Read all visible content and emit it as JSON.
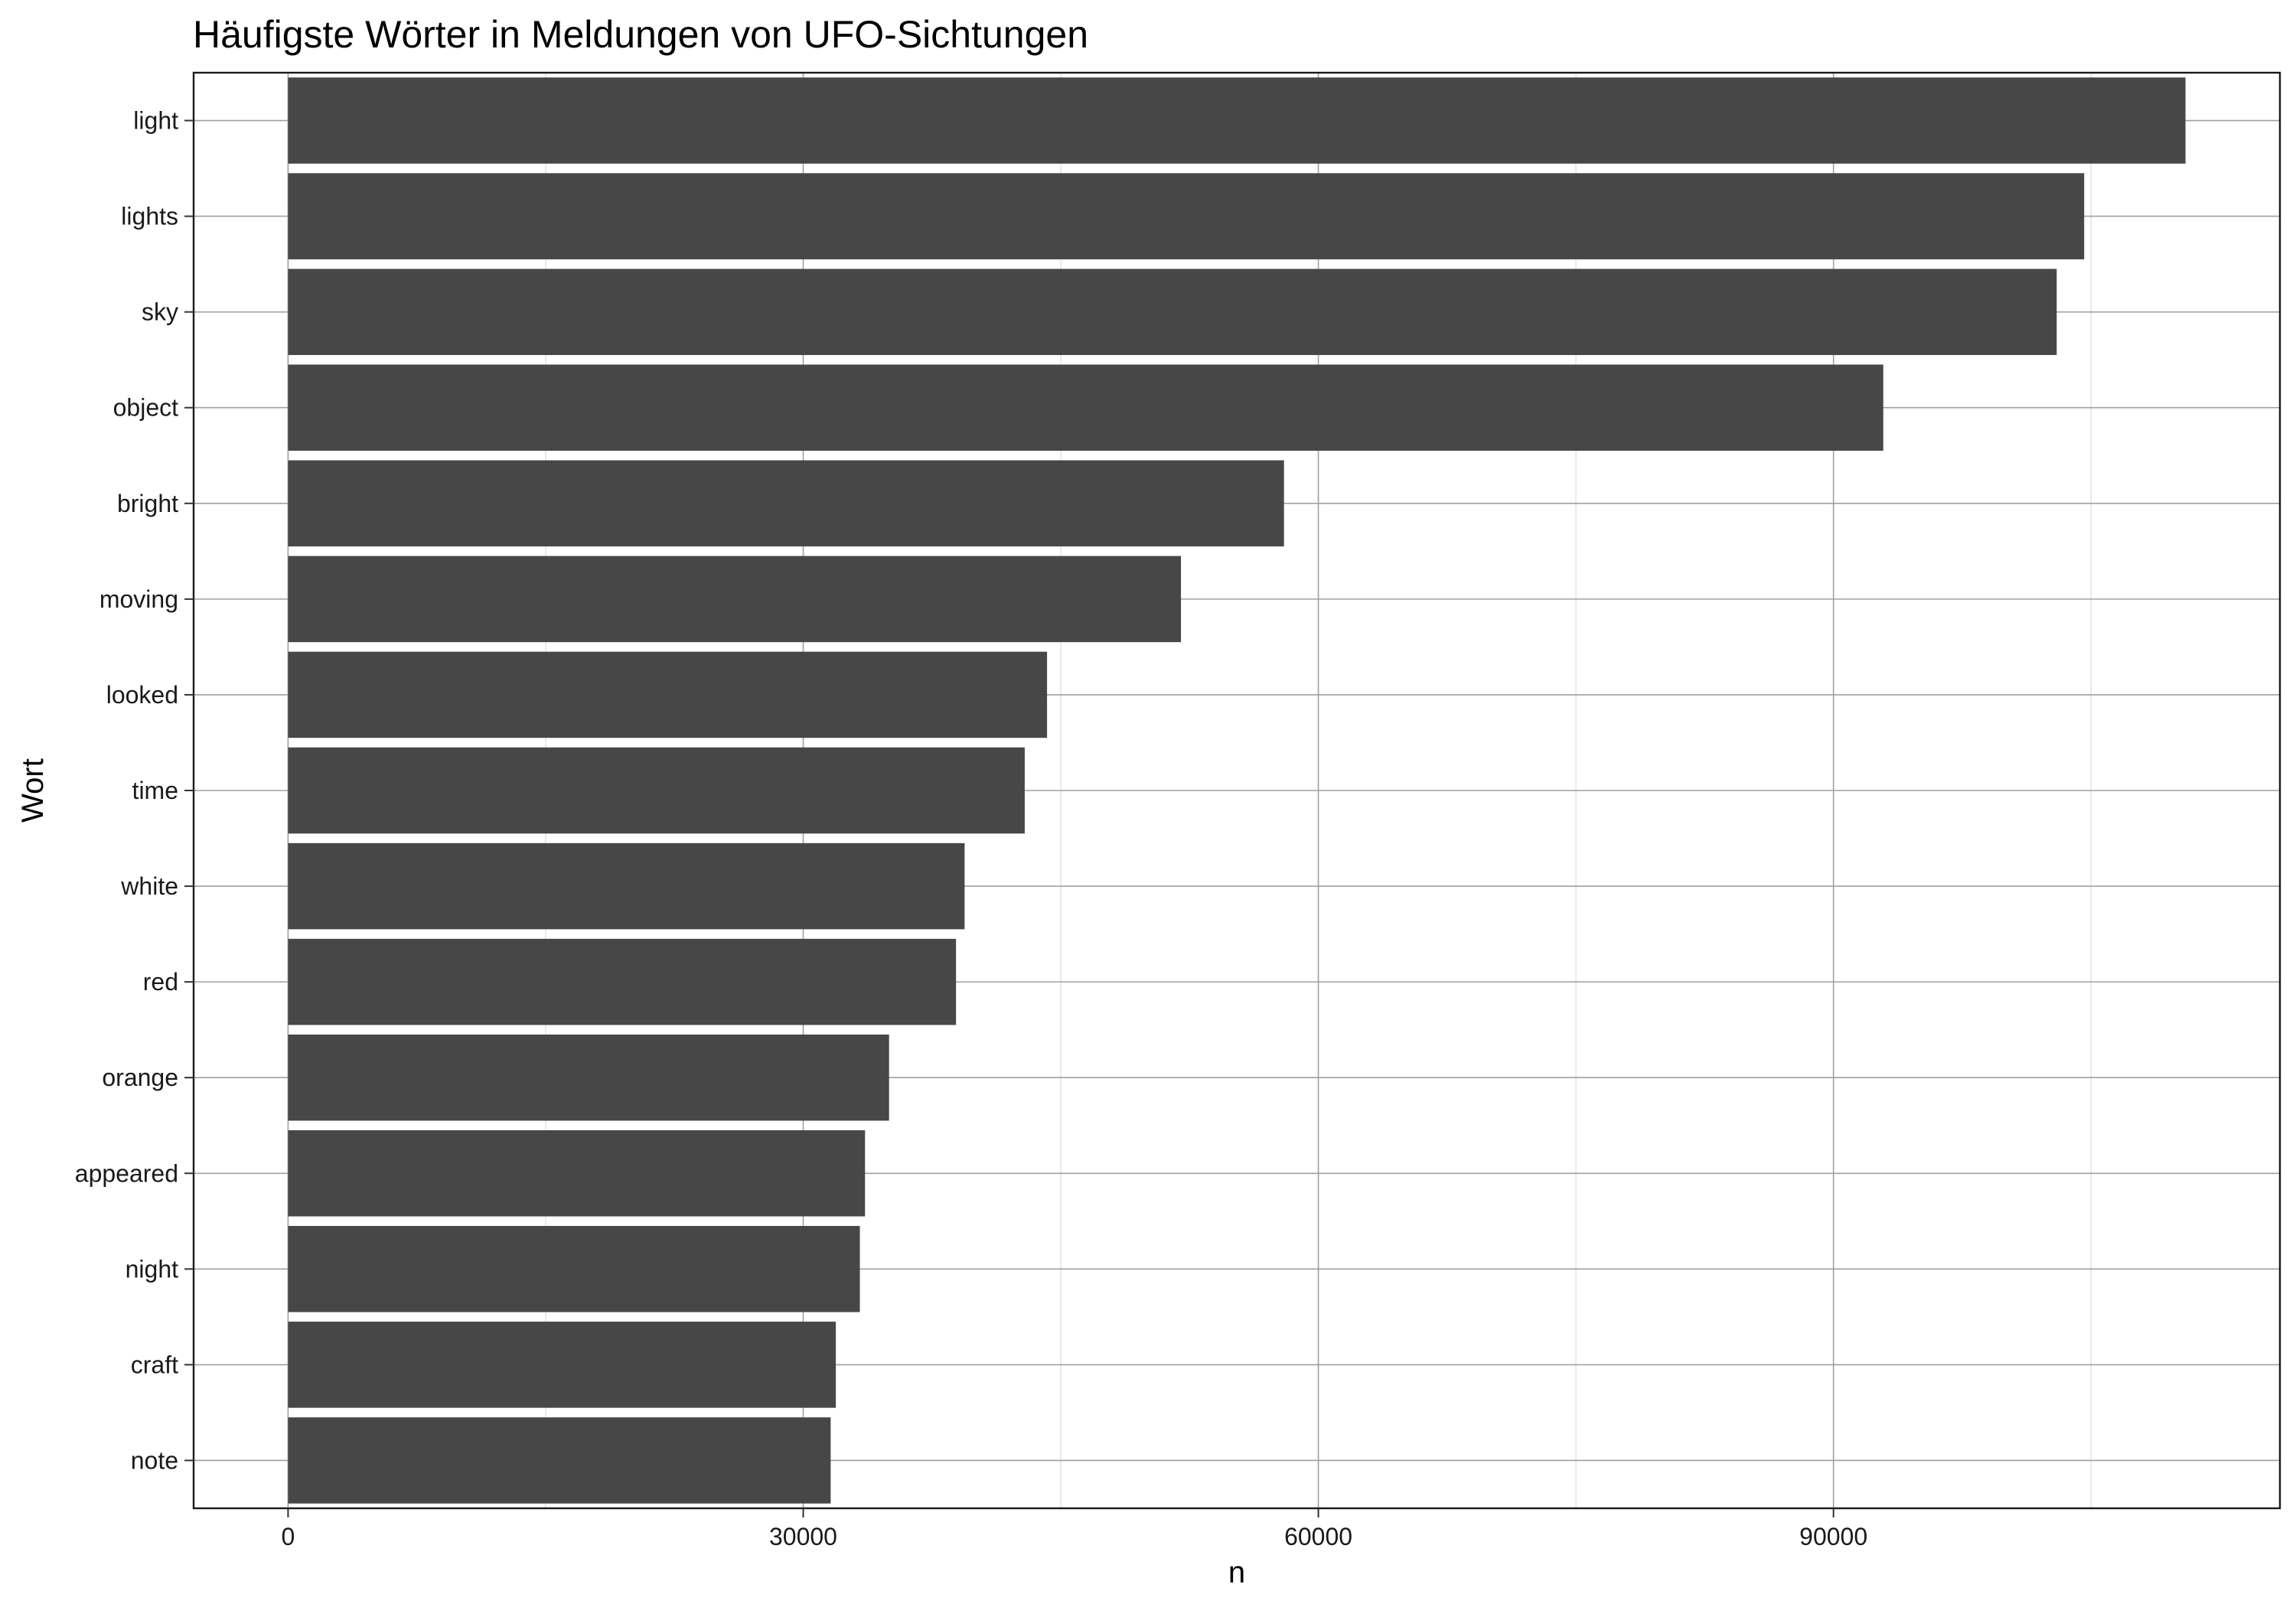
{
  "chart_data": {
    "type": "bar",
    "orientation": "horizontal",
    "title": "Häufigste Wörter in Meldungen von UFO-Sichtungen",
    "xlabel": "n",
    "ylabel": "Wort",
    "categories": [
      "light",
      "lights",
      "sky",
      "object",
      "bright",
      "moving",
      "looked",
      "time",
      "white",
      "red",
      "orange",
      "appeared",
      "night",
      "craft",
      "note"
    ],
    "values": [
      110500,
      104600,
      103000,
      92900,
      58000,
      52000,
      44200,
      42900,
      39400,
      38900,
      35000,
      33600,
      33300,
      31900,
      31600
    ],
    "xlim": [
      -5500,
      116000
    ],
    "xticks": [
      0,
      30000,
      60000,
      90000
    ],
    "xtick_labels": [
      "0",
      "30000",
      "60000",
      "90000"
    ],
    "grid": true,
    "bar_color": "#474747"
  }
}
